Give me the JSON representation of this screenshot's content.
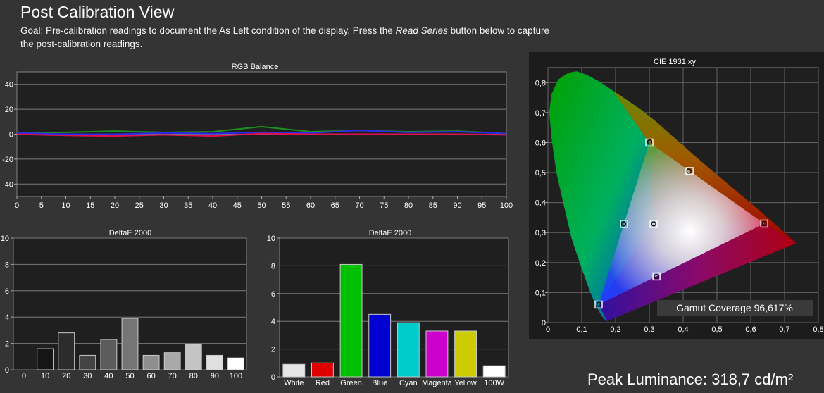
{
  "header": {
    "title": "Post Calibration View",
    "goal_prefix": "Goal: Pre-calibration readings to document the As Left condition of the display. Press the ",
    "goal_emph": "Read Series",
    "goal_suffix": " button below to capture the post-calibration readings."
  },
  "rgb_balance": {
    "title": "RGB Balance",
    "y_ticks": [
      "40",
      "20",
      "0",
      "-20",
      "-40"
    ],
    "x_ticks": [
      "0",
      "5",
      "10",
      "15",
      "20",
      "25",
      "30",
      "35",
      "40",
      "45",
      "50",
      "55",
      "60",
      "65",
      "70",
      "75",
      "80",
      "85",
      "90",
      "95",
      "100"
    ]
  },
  "deltae_gray": {
    "title": "DeltaE 2000",
    "y_ticks": [
      "10",
      "8",
      "6",
      "4",
      "2",
      "0"
    ],
    "categories": [
      "0",
      "10",
      "20",
      "30",
      "40",
      "50",
      "60",
      "70",
      "80",
      "90",
      "100"
    ]
  },
  "deltae_color": {
    "title": "DeltaE 2000",
    "y_ticks": [
      "10",
      "8",
      "6",
      "4",
      "2",
      "0"
    ],
    "categories": [
      "White",
      "Red",
      "Green",
      "Blue",
      "Cyan",
      "Magenta",
      "Yellow",
      "100W"
    ]
  },
  "cie": {
    "title": "CIE 1931 xy",
    "y_ticks": [
      "0,8",
      "0,7",
      "0,6",
      "0,5",
      "0,4",
      "0,3",
      "0,2",
      "0,1",
      "0"
    ],
    "x_ticks": [
      "0",
      "0,1",
      "0,2",
      "0,3",
      "0,4",
      "0,5",
      "0,6",
      "0,7",
      "0,8"
    ],
    "gamut_coverage": "Gamut Coverage 96,617%"
  },
  "peak_luminance": "Peak Luminance: 318,7 cd/m²",
  "chart_data": [
    {
      "type": "line",
      "title": "RGB Balance",
      "x": [
        0,
        10,
        20,
        30,
        40,
        50,
        60,
        70,
        80,
        90,
        100
      ],
      "ylim": [
        -50,
        50
      ],
      "series": [
        {
          "color": "#1f8f1f",
          "values": [
            1,
            1.5,
            2.5,
            1.5,
            2,
            6,
            2,
            3,
            2,
            2.5,
            0.5
          ]
        },
        {
          "color": "#2a2ae8",
          "values": [
            1,
            0,
            0,
            1,
            0.5,
            1.5,
            1,
            3,
            1.5,
            2,
            0.5
          ]
        },
        {
          "color": "#e0104a",
          "values": [
            0,
            -1,
            -1.5,
            -0.5,
            -1.5,
            0.5,
            0,
            0,
            0,
            0,
            -0.5
          ]
        }
      ]
    },
    {
      "type": "bar",
      "title": "DeltaE 2000",
      "categories": [
        "0",
        "10",
        "20",
        "30",
        "40",
        "50",
        "60",
        "70",
        "80",
        "90",
        "100"
      ],
      "values": [
        0,
        1.6,
        2.8,
        1.1,
        2.3,
        3.9,
        1.1,
        1.3,
        1.9,
        1.1,
        0.9
      ],
      "ylim": [
        0,
        10
      ],
      "colors": [
        "#000000",
        "#151515",
        "#2c2c2c",
        "#444444",
        "#5c5c5c",
        "#757575",
        "#8e8e8e",
        "#a8a8a8",
        "#c4c4c4",
        "#e0e0e0",
        "#ffffff"
      ]
    },
    {
      "type": "bar",
      "title": "DeltaE 2000",
      "categories": [
        "White",
        "Red",
        "Green",
        "Blue",
        "Cyan",
        "Magenta",
        "Yellow",
        "100W"
      ],
      "values": [
        0.9,
        1.0,
        8.1,
        4.5,
        3.9,
        3.3,
        3.3,
        0.8
      ],
      "ylim": [
        0,
        10
      ],
      "colors": [
        "#e6e6e6",
        "#e00000",
        "#00c000",
        "#0000d0",
        "#00cccc",
        "#cc00cc",
        "#cccc00",
        "#ffffff"
      ]
    },
    {
      "type": "scatter",
      "title": "CIE 1931 xy",
      "xlim": [
        0,
        0.8
      ],
      "ylim": [
        0,
        0.85
      ],
      "targets": [
        [
          0.64,
          0.33
        ],
        [
          0.3,
          0.6
        ],
        [
          0.15,
          0.06
        ],
        [
          0.3127,
          0.329
        ],
        [
          0.225,
          0.329
        ],
        [
          0.321,
          0.154
        ],
        [
          0.419,
          0.505
        ]
      ],
      "measured": [
        [
          0.64,
          0.33
        ],
        [
          0.301,
          0.602
        ],
        [
          0.151,
          0.061
        ],
        [
          0.3127,
          0.329
        ],
        [
          0.224,
          0.329
        ],
        [
          0.321,
          0.154
        ],
        [
          0.417,
          0.505
        ]
      ]
    }
  ]
}
